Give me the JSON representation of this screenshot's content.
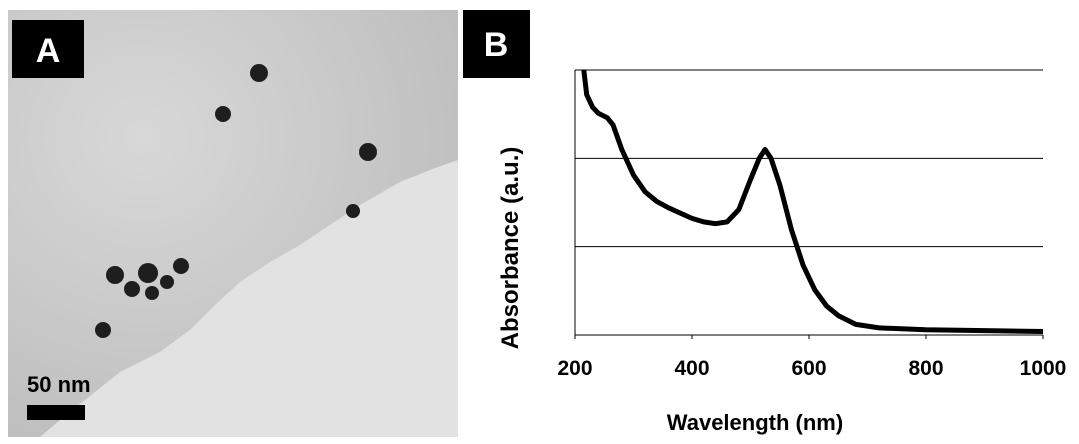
{
  "panel_a": {
    "label": "A",
    "scale_bar": "50 nm"
  },
  "chart_data": {
    "type": "line",
    "panel_label": "B",
    "xlabel": "Wavelength (nm)",
    "ylabel": "Absorbance (a.u.)",
    "x": [
      215,
      220,
      230,
      240,
      255,
      265,
      280,
      300,
      320,
      340,
      360,
      380,
      400,
      420,
      440,
      460,
      480,
      500,
      515,
      525,
      535,
      550,
      570,
      590,
      610,
      630,
      650,
      680,
      720,
      800,
      900,
      1000
    ],
    "values": [
      3.0,
      2.72,
      2.58,
      2.51,
      2.46,
      2.38,
      2.1,
      1.81,
      1.62,
      1.51,
      1.44,
      1.38,
      1.32,
      1.28,
      1.26,
      1.28,
      1.42,
      1.76,
      2.0,
      2.1,
      2.0,
      1.7,
      1.19,
      0.79,
      0.51,
      0.33,
      0.22,
      0.12,
      0.08,
      0.06,
      0.05,
      0.04
    ],
    "color": "#000000",
    "xlim": [
      200,
      1000
    ],
    "xticks": [
      200,
      400,
      600,
      800,
      1000
    ],
    "ylim": [
      0,
      3
    ],
    "ygrid": [
      1,
      2,
      3
    ]
  }
}
